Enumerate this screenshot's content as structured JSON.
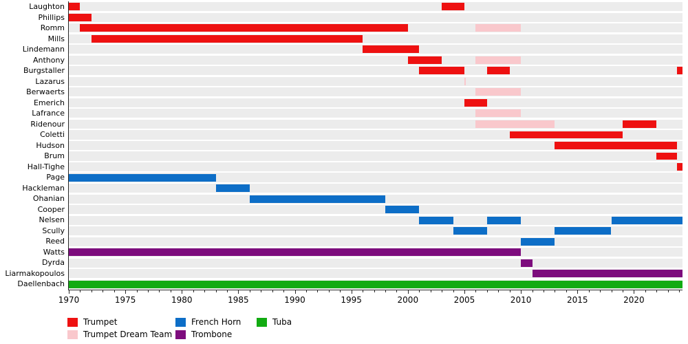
{
  "chart_data": {
    "type": "bar",
    "variant": "horizontal-membership-timeline",
    "title": "",
    "x_axis": {
      "range": [
        1970,
        2024.3
      ],
      "ticks": [
        1970,
        1975,
        1980,
        1985,
        1990,
        1995,
        2000,
        2005,
        2010,
        2015,
        2020
      ],
      "minor_tick_interval": 1,
      "grid": false
    },
    "palette": {
      "trumpet": "#ee1111",
      "trumpet_dream_team": "#f9c8cc",
      "french_horn": "#0d6ec7",
      "trombone": "#7d0c7d",
      "tuba": "#12ab12",
      "row_band": "#ececec",
      "axis": "#262626"
    },
    "rows": [
      {
        "name": "Laughton",
        "segments": [
          {
            "from": 1970,
            "to": 1971,
            "color": "trumpet"
          },
          {
            "from": 2003,
            "to": 2005,
            "color": "trumpet"
          }
        ]
      },
      {
        "name": "Phillips",
        "segments": [
          {
            "from": 1970,
            "to": 1972,
            "color": "trumpet"
          }
        ]
      },
      {
        "name": "Romm",
        "segments": [
          {
            "from": 1971,
            "to": 2000,
            "color": "trumpet"
          },
          {
            "from": 2006,
            "to": 2010,
            "color": "trumpet_dream_team"
          }
        ]
      },
      {
        "name": "Mills",
        "segments": [
          {
            "from": 1972,
            "to": 1996,
            "color": "trumpet"
          }
        ]
      },
      {
        "name": "Lindemann",
        "segments": [
          {
            "from": 1996,
            "to": 2001,
            "color": "trumpet"
          }
        ]
      },
      {
        "name": "Anthony",
        "segments": [
          {
            "from": 2000,
            "to": 2003,
            "color": "trumpet"
          },
          {
            "from": 2006,
            "to": 2010,
            "color": "trumpet_dream_team"
          }
        ]
      },
      {
        "name": "Burgstaller",
        "segments": [
          {
            "from": 2001,
            "to": 2005,
            "color": "trumpet"
          },
          {
            "from": 2007,
            "to": 2009,
            "color": "trumpet"
          },
          {
            "from": 2023.8,
            "to": 2024.3,
            "color": "trumpet"
          }
        ]
      },
      {
        "name": "Lazarus",
        "segments": [
          {
            "from": 2005,
            "to": 2005.15,
            "color": "trumpet_dream_team"
          }
        ]
      },
      {
        "name": "Berwaerts",
        "segments": [
          {
            "from": 2006,
            "to": 2010,
            "color": "trumpet_dream_team"
          }
        ]
      },
      {
        "name": "Emerich",
        "segments": [
          {
            "from": 2005,
            "to": 2007,
            "color": "trumpet"
          }
        ]
      },
      {
        "name": "Lafrance",
        "segments": [
          {
            "from": 2006,
            "to": 2010,
            "color": "trumpet_dream_team"
          }
        ]
      },
      {
        "name": "Ridenour",
        "segments": [
          {
            "from": 2006,
            "to": 2013,
            "color": "trumpet_dream_team"
          },
          {
            "from": 2019,
            "to": 2022,
            "color": "trumpet"
          }
        ]
      },
      {
        "name": "Coletti",
        "segments": [
          {
            "from": 2009,
            "to": 2019,
            "color": "trumpet"
          }
        ]
      },
      {
        "name": "Hudson",
        "segments": [
          {
            "from": 2013,
            "to": 2023.8,
            "color": "trumpet"
          }
        ]
      },
      {
        "name": "Brum",
        "segments": [
          {
            "from": 2022,
            "to": 2023.8,
            "color": "trumpet"
          }
        ]
      },
      {
        "name": "Hall-Tighe",
        "segments": [
          {
            "from": 2023.8,
            "to": 2024.3,
            "color": "trumpet"
          }
        ]
      },
      {
        "name": "Page",
        "segments": [
          {
            "from": 1970,
            "to": 1983,
            "color": "french_horn"
          }
        ]
      },
      {
        "name": "Hackleman",
        "segments": [
          {
            "from": 1983,
            "to": 1986,
            "color": "french_horn"
          }
        ]
      },
      {
        "name": "Ohanian",
        "segments": [
          {
            "from": 1986,
            "to": 1998,
            "color": "french_horn"
          }
        ]
      },
      {
        "name": "Cooper",
        "segments": [
          {
            "from": 1998,
            "to": 2001,
            "color": "french_horn"
          }
        ]
      },
      {
        "name": "Nelsen",
        "segments": [
          {
            "from": 2001,
            "to": 2004,
            "color": "french_horn"
          },
          {
            "from": 2007,
            "to": 2010,
            "color": "french_horn"
          },
          {
            "from": 2018,
            "to": 2024.3,
            "color": "french_horn"
          }
        ]
      },
      {
        "name": "Scully",
        "segments": [
          {
            "from": 2004,
            "to": 2007,
            "color": "french_horn"
          },
          {
            "from": 2013,
            "to": 2018,
            "color": "french_horn"
          }
        ]
      },
      {
        "name": "Reed",
        "segments": [
          {
            "from": 2010,
            "to": 2013,
            "color": "french_horn"
          }
        ]
      },
      {
        "name": "Watts",
        "segments": [
          {
            "from": 1970,
            "to": 2010,
            "color": "trombone"
          }
        ]
      },
      {
        "name": "Dyrda",
        "segments": [
          {
            "from": 2010,
            "to": 2011,
            "color": "trombone"
          }
        ]
      },
      {
        "name": "Liarmakopoulos",
        "segments": [
          {
            "from": 2011,
            "to": 2024.3,
            "color": "trombone"
          }
        ]
      },
      {
        "name": "Daellenbach",
        "segments": [
          {
            "from": 1970,
            "to": 2024.3,
            "color": "tuba"
          }
        ]
      }
    ],
    "legend": [
      {
        "label": "Trumpet",
        "color": "trumpet"
      },
      {
        "label": "Trumpet Dream Team",
        "color": "trumpet_dream_team"
      },
      {
        "label": "French Horn",
        "color": "french_horn"
      },
      {
        "label": "Trombone",
        "color": "trombone"
      },
      {
        "label": "Tuba",
        "color": "tuba"
      }
    ],
    "legend_position": "bottom"
  }
}
